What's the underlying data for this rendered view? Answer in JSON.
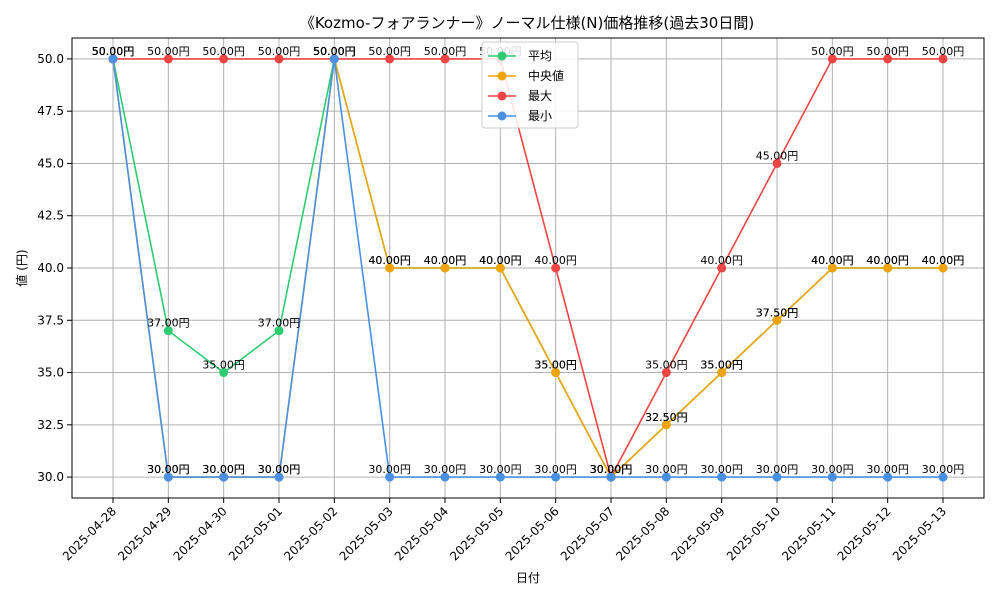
{
  "chart_data": {
    "type": "line",
    "title": "《Kozmo-フォアランナー》ノーマル仕様(N)価格推移(過去30日間)",
    "xlabel": "日付",
    "ylabel": "値 (円)",
    "ylim": [
      29.0,
      51.0
    ],
    "yticks": [
      30.0,
      32.5,
      35.0,
      37.5,
      40.0,
      42.5,
      45.0,
      47.5,
      50.0
    ],
    "ytick_labels": [
      "30.0",
      "32.5",
      "35.0",
      "37.5",
      "40.0",
      "42.5",
      "45.0",
      "47.5",
      "50.0"
    ],
    "grid": true,
    "legend_position": "top-center",
    "categories": [
      "2025-04-28",
      "2025-04-29",
      "2025-04-30",
      "2025-05-01",
      "2025-05-02",
      "2025-05-03",
      "2025-05-04",
      "2025-05-05",
      "2025-05-06",
      "2025-05-07",
      "2025-05-08",
      "2025-05-09",
      "2025-05-10",
      "2025-05-11",
      "2025-05-12",
      "2025-05-13"
    ],
    "series": [
      {
        "name": "平均",
        "color": "#2ecc71",
        "values": [
          50,
          37,
          35,
          37,
          50,
          40,
          40,
          40,
          35,
          30,
          32.5,
          35,
          37.5,
          40,
          40,
          40
        ],
        "labels": [
          "50.00円",
          "37.00円",
          "35.00円",
          "37.00円",
          "50.00円",
          "40.00円",
          "40.00円",
          "40.00円",
          "35.00円",
          "30.00円",
          "32.50円",
          "35.00円",
          "37.50円",
          "40.00円",
          "40.00円",
          "40.00円"
        ]
      },
      {
        "name": "中央値",
        "color": "#f0a30a",
        "values": [
          50,
          30,
          30,
          30,
          50,
          40,
          40,
          40,
          35,
          30,
          32.5,
          35,
          37.5,
          40,
          40,
          40
        ],
        "labels": [
          "50.00円",
          "30.00円",
          "30.00円",
          "30.00円",
          "50.00円",
          "40.00円",
          "40.00円",
          "40.00円",
          "35.00円",
          "30.00円",
          "32.50円",
          "35.00円",
          "37.50円",
          "40.00円",
          "40.00円",
          "40.00円"
        ]
      },
      {
        "name": "最大",
        "color": "#ef4444",
        "values": [
          50,
          50,
          50,
          50,
          50,
          50,
          50,
          50,
          40,
          30,
          35,
          40,
          45,
          50,
          50,
          50
        ],
        "labels": [
          "50.00円",
          "50.00円",
          "50.00円",
          "50.00円",
          "50.00円",
          "50.00円",
          "50.00円",
          "50.00円",
          "40.00円",
          "30.00円",
          "35.00円",
          "40.00円",
          "45.00円",
          "50.00円",
          "50.00円",
          "50.00円"
        ]
      },
      {
        "name": "最小",
        "color": "#4a90e2",
        "values": [
          50,
          30,
          30,
          30,
          50,
          30,
          30,
          30,
          30,
          30,
          30,
          30,
          30,
          30,
          30,
          30
        ],
        "labels": [
          "50.00円",
          "30.00円",
          "30.00円",
          "30.00円",
          "50.00円",
          "30.00円",
          "30.00円",
          "30.00円",
          "30.00円",
          "30.00円",
          "30.00円",
          "30.00円",
          "30.00円",
          "30.00円",
          "30.00円",
          "30.00円"
        ]
      }
    ]
  }
}
